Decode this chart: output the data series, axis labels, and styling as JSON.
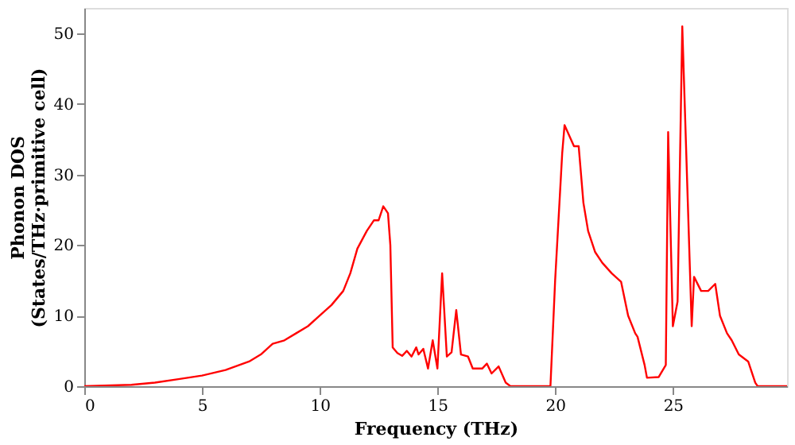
{
  "chart_data": {
    "type": "line",
    "xlabel": "Frequency (THz)",
    "ylabel": "Phonon DOS\n(States/THz·primitive cell)",
    "xlim": [
      0,
      29.85
    ],
    "ylim": [
      0,
      53.6
    ],
    "xticks": [
      0,
      5,
      10,
      15,
      20,
      25
    ],
    "yticks": [
      0,
      10,
      20,
      30,
      40,
      50
    ],
    "grid": false,
    "line_style": "solid",
    "marker": "none",
    "series": [
      {
        "color": "#ff0000",
        "x": [
          0,
          2,
          3,
          4,
          5,
          6,
          7,
          7.5,
          8,
          8.5,
          9,
          9.5,
          10,
          10.5,
          11,
          11.3,
          11.6,
          12,
          12.3,
          12.5,
          12.7,
          12.9,
          13.0,
          13.1,
          13.3,
          13.5,
          13.7,
          13.9,
          14.1,
          14.2,
          14.4,
          14.6,
          14.8,
          15.0,
          15.2,
          15.4,
          15.6,
          15.8,
          16.0,
          16.3,
          16.5,
          16.9,
          17.1,
          17.3,
          17.6,
          17.9,
          18.1,
          19.8,
          20.0,
          20.3,
          20.4,
          20.8,
          21.0,
          21.2,
          21.4,
          21.7,
          22,
          22.4,
          22.8,
          23.1,
          23.4,
          23.5,
          23.8,
          23.9,
          24.4,
          24.7,
          24.8,
          25.0,
          25.2,
          25.4,
          25.8,
          25.9,
          26.2,
          26.5,
          26.8,
          27.0,
          27.3,
          27.5,
          27.8,
          28.2,
          28.5,
          28.6,
          29.85
        ],
        "values": [
          0,
          0.2,
          0.5,
          1,
          1.5,
          2.3,
          3.5,
          4.5,
          6,
          6.5,
          7.5,
          8.5,
          10,
          11.5,
          13.5,
          16,
          19.5,
          22,
          23.5,
          23.5,
          25.5,
          24.5,
          20,
          5.5,
          4.7,
          4.3,
          5,
          4.2,
          5.5,
          4.5,
          5.3,
          2.5,
          6.5,
          2.5,
          16,
          4.2,
          4.8,
          10.8,
          4.5,
          4.2,
          2.5,
          2.5,
          3.2,
          1.8,
          2.8,
          0.5,
          0,
          0,
          15,
          33,
          37,
          34,
          34,
          26,
          22,
          19,
          17.5,
          16,
          14.8,
          10,
          7.5,
          7,
          3,
          1.2,
          1.3,
          3,
          36,
          8.5,
          12,
          51,
          8.5,
          15.5,
          13.5,
          13.5,
          14.5,
          10,
          7.5,
          6.5,
          4.5,
          3.5,
          0.5,
          0,
          0
        ]
      }
    ]
  }
}
